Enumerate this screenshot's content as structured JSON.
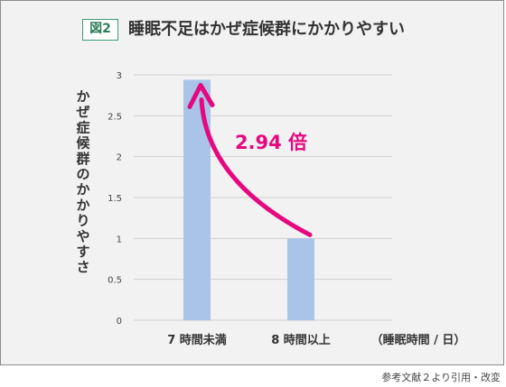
{
  "figure_label": "図2",
  "title": "睡眠不足はかぜ症候群にかかりやすい",
  "source_note": "参考文献２より引用・改変",
  "colors": {
    "bar": "#a9c4e8",
    "arrow": "#e5087f",
    "grid": "#d0d0d0",
    "panel": "#f2f2f2",
    "badge": "#3c9e74"
  },
  "annotation": "2.94 倍",
  "chart_data": {
    "type": "bar",
    "title": "睡眠不足はかぜ症候群にかかりやすい",
    "categories": [
      "7 時間未満",
      "8 時間以上"
    ],
    "values": [
      2.94,
      1.0
    ],
    "xlabel": "（睡眠時間 / 日）",
    "ylabel": "かぜ症候群のかかりやすさ",
    "ylim": [
      0,
      3
    ],
    "yticks": [
      "0",
      "0.5",
      "1",
      "1.5",
      "2",
      "2.5",
      "3"
    ],
    "grid": true,
    "legend": "none"
  }
}
